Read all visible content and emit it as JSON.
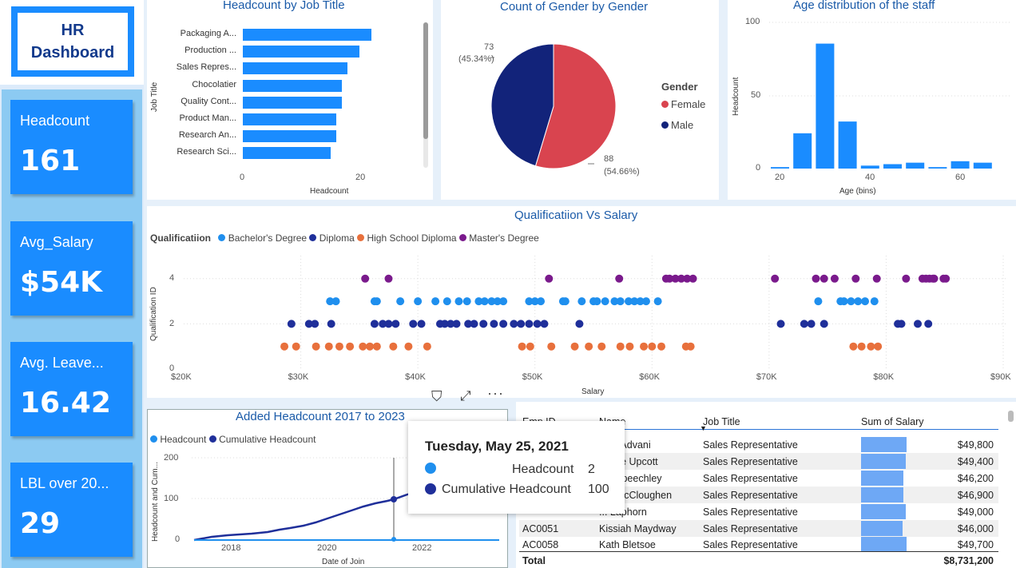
{
  "dashboard": {
    "title_line1": "HR",
    "title_line2": "Dashboard"
  },
  "kpis": [
    {
      "label": "Headcount",
      "value": "161"
    },
    {
      "label": "Avg_Salary",
      "value": "$54K"
    },
    {
      "label": "Avg. Leave...",
      "value": "16.42"
    },
    {
      "label": "LBL over 20...",
      "value": "29"
    }
  ],
  "job_chart": {
    "title": "Headcount by Job Title",
    "xlabel": "Headcount",
    "ylabel": "Job Title",
    "ticks": [
      "0",
      "20"
    ],
    "categories": [
      "Packaging A...",
      "Production ...",
      "Sales Repres...",
      "Chocolatier",
      "Quality Cont...",
      "Product Man...",
      "Research An...",
      "Research Sci..."
    ],
    "values": [
      22,
      20,
      18,
      17,
      17,
      16,
      16,
      15
    ]
  },
  "gender_chart": {
    "title": "Count of Gender by Gender",
    "legend_title": "Gender",
    "legend": [
      {
        "name": "Female",
        "color": "#d9444f"
      },
      {
        "name": "Male",
        "color": "#12237a"
      }
    ],
    "male_count": "73",
    "male_pct": "(45.34%)",
    "female_count": "88",
    "female_pct": "(54.66%)",
    "values": [
      88,
      73
    ]
  },
  "age_chart": {
    "title": "Age distribution of the staff",
    "xlabel": "Age (bins)",
    "ylabel": "Headcount",
    "yticks": [
      "100",
      "50",
      "0"
    ],
    "xticks": [
      "20",
      "40",
      "60"
    ],
    "bins": [
      20,
      25,
      30,
      35,
      40,
      45,
      50,
      55,
      60,
      65
    ],
    "values": [
      1,
      24,
      85,
      32,
      2,
      3,
      4,
      1,
      5,
      4
    ]
  },
  "scatter_chart": {
    "title": "Qualificatiion Vs Salary",
    "legend_title": "Qualificatiion",
    "legend": [
      {
        "name": "Bachelor's Degree",
        "color": "#1f8fee"
      },
      {
        "name": "Diploma",
        "color": "#1f2f9a"
      },
      {
        "name": "High School Diploma",
        "color": "#e8703c"
      },
      {
        "name": "Master's Degree",
        "color": "#7a1a8c"
      }
    ],
    "xlabel": "Salary",
    "ylabel": "Qualification ID",
    "xticks": [
      "$20K",
      "$30K",
      "$40K",
      "$50K",
      "$60K",
      "$70K",
      "$80K",
      "$90K"
    ],
    "yticks": [
      "4",
      "2",
      "0"
    ]
  },
  "added_chart": {
    "title": "Added Headcount 2017 to 2023",
    "legend": [
      {
        "name": "Headcount",
        "color": "#1f8fee"
      },
      {
        "name": "Cumulative Headcount",
        "color": "#1f2f9a"
      }
    ],
    "xlabel": "Date of Join",
    "ylabel": "Headcount and Cum...",
    "yticks": [
      "200",
      "100",
      "0"
    ],
    "xticks": [
      "2018",
      "2020",
      "2022"
    ]
  },
  "tooltip": {
    "date": "Tuesday, May 25, 2021",
    "rows": [
      {
        "label": "Headcount",
        "value": "2",
        "color": "#1f8fee"
      },
      {
        "label": "Cumulative Headcount",
        "value": "100",
        "color": "#1f2f9a"
      }
    ]
  },
  "table": {
    "headers": [
      "Emp ID",
      "Name",
      "Job Title",
      "Sum of Salary"
    ],
    "rows": [
      {
        "id": "",
        "name": "...ce Advani",
        "job": "Sales Representative",
        "salary": "$49,800",
        "v": 49800
      },
      {
        "id": "",
        "name": "...lene Upcott",
        "job": "Sales Representative",
        "salary": "$49,400",
        "v": 49400
      },
      {
        "id": "",
        "name": "...y Speechley",
        "job": "Sales Representative",
        "salary": "$46,200",
        "v": 46200
      },
      {
        "id": "",
        "name": "...e McCloughen",
        "job": "Sales Representative",
        "salary": "$46,900",
        "v": 46900
      },
      {
        "id": "",
        "name": "... Laphorn",
        "job": "Sales Representative",
        "salary": "$49,000",
        "v": 49000
      },
      {
        "id": "AC0051",
        "name": "Kissiah Maydway",
        "job": "Sales Representative",
        "salary": "$46,000",
        "v": 46000
      },
      {
        "id": "AC0058",
        "name": "Kath Bletsoe",
        "job": "Sales Representative",
        "salary": "$49,700",
        "v": 49700
      }
    ],
    "total_label": "Total",
    "total_value": "$8,731,200"
  }
}
